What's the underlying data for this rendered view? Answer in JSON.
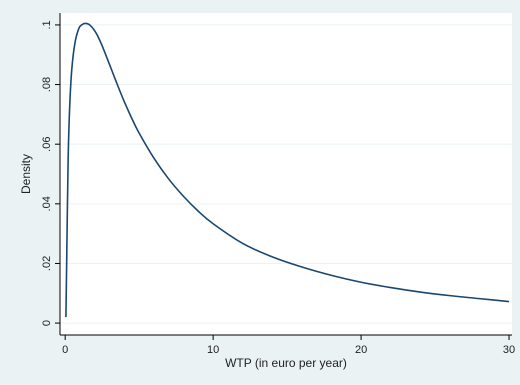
{
  "chart_data": {
    "type": "line",
    "title": "",
    "xlabel": "WTP (in euro per year)",
    "ylabel": "Density",
    "xlim": [
      0,
      30
    ],
    "ylim": [
      0,
      0.1
    ],
    "x_ticks": [
      0,
      10,
      20,
      30
    ],
    "x_tick_labels": [
      "0",
      "10",
      "20",
      "30"
    ],
    "y_ticks": [
      0,
      0.02,
      0.04,
      0.06,
      0.08,
      0.1
    ],
    "y_tick_labels": [
      "0",
      ".02",
      ".04",
      ".06",
      ".08",
      ".1"
    ],
    "grid": true,
    "legend": "none",
    "series": [
      {
        "x": [
          0.05,
          0.1,
          0.2,
          0.3,
          0.4,
          0.5,
          0.6,
          0.7,
          0.8,
          0.9,
          1.0,
          1.2,
          1.4,
          1.6,
          1.8,
          2.0,
          2.2,
          2.5,
          3.0,
          3.5,
          4.0,
          4.5,
          5.0,
          6.0,
          7.0,
          8.0,
          9.0,
          10.0,
          12.0,
          14.0,
          16.0,
          18.0,
          20.0,
          22.0,
          24.0,
          26.0,
          28.0,
          30.0
        ],
        "y": [
          0.002,
          0.02,
          0.055,
          0.072,
          0.082,
          0.088,
          0.092,
          0.095,
          0.097,
          0.0985,
          0.0995,
          0.1003,
          0.1005,
          0.1002,
          0.0993,
          0.098,
          0.0963,
          0.093,
          0.0867,
          0.0803,
          0.0742,
          0.0687,
          0.0637,
          0.0553,
          0.0483,
          0.0425,
          0.0375,
          0.0333,
          0.0267,
          0.0222,
          0.0188,
          0.016,
          0.0137,
          0.0119,
          0.0104,
          0.0092,
          0.0082,
          0.0072
        ]
      }
    ],
    "colors": {
      "background": "#eaf2f3",
      "plot_area": "#ffffff",
      "grid": "#eaf2f3",
      "line": "#1a476f",
      "axis": "#000000",
      "text": "#222222"
    }
  }
}
